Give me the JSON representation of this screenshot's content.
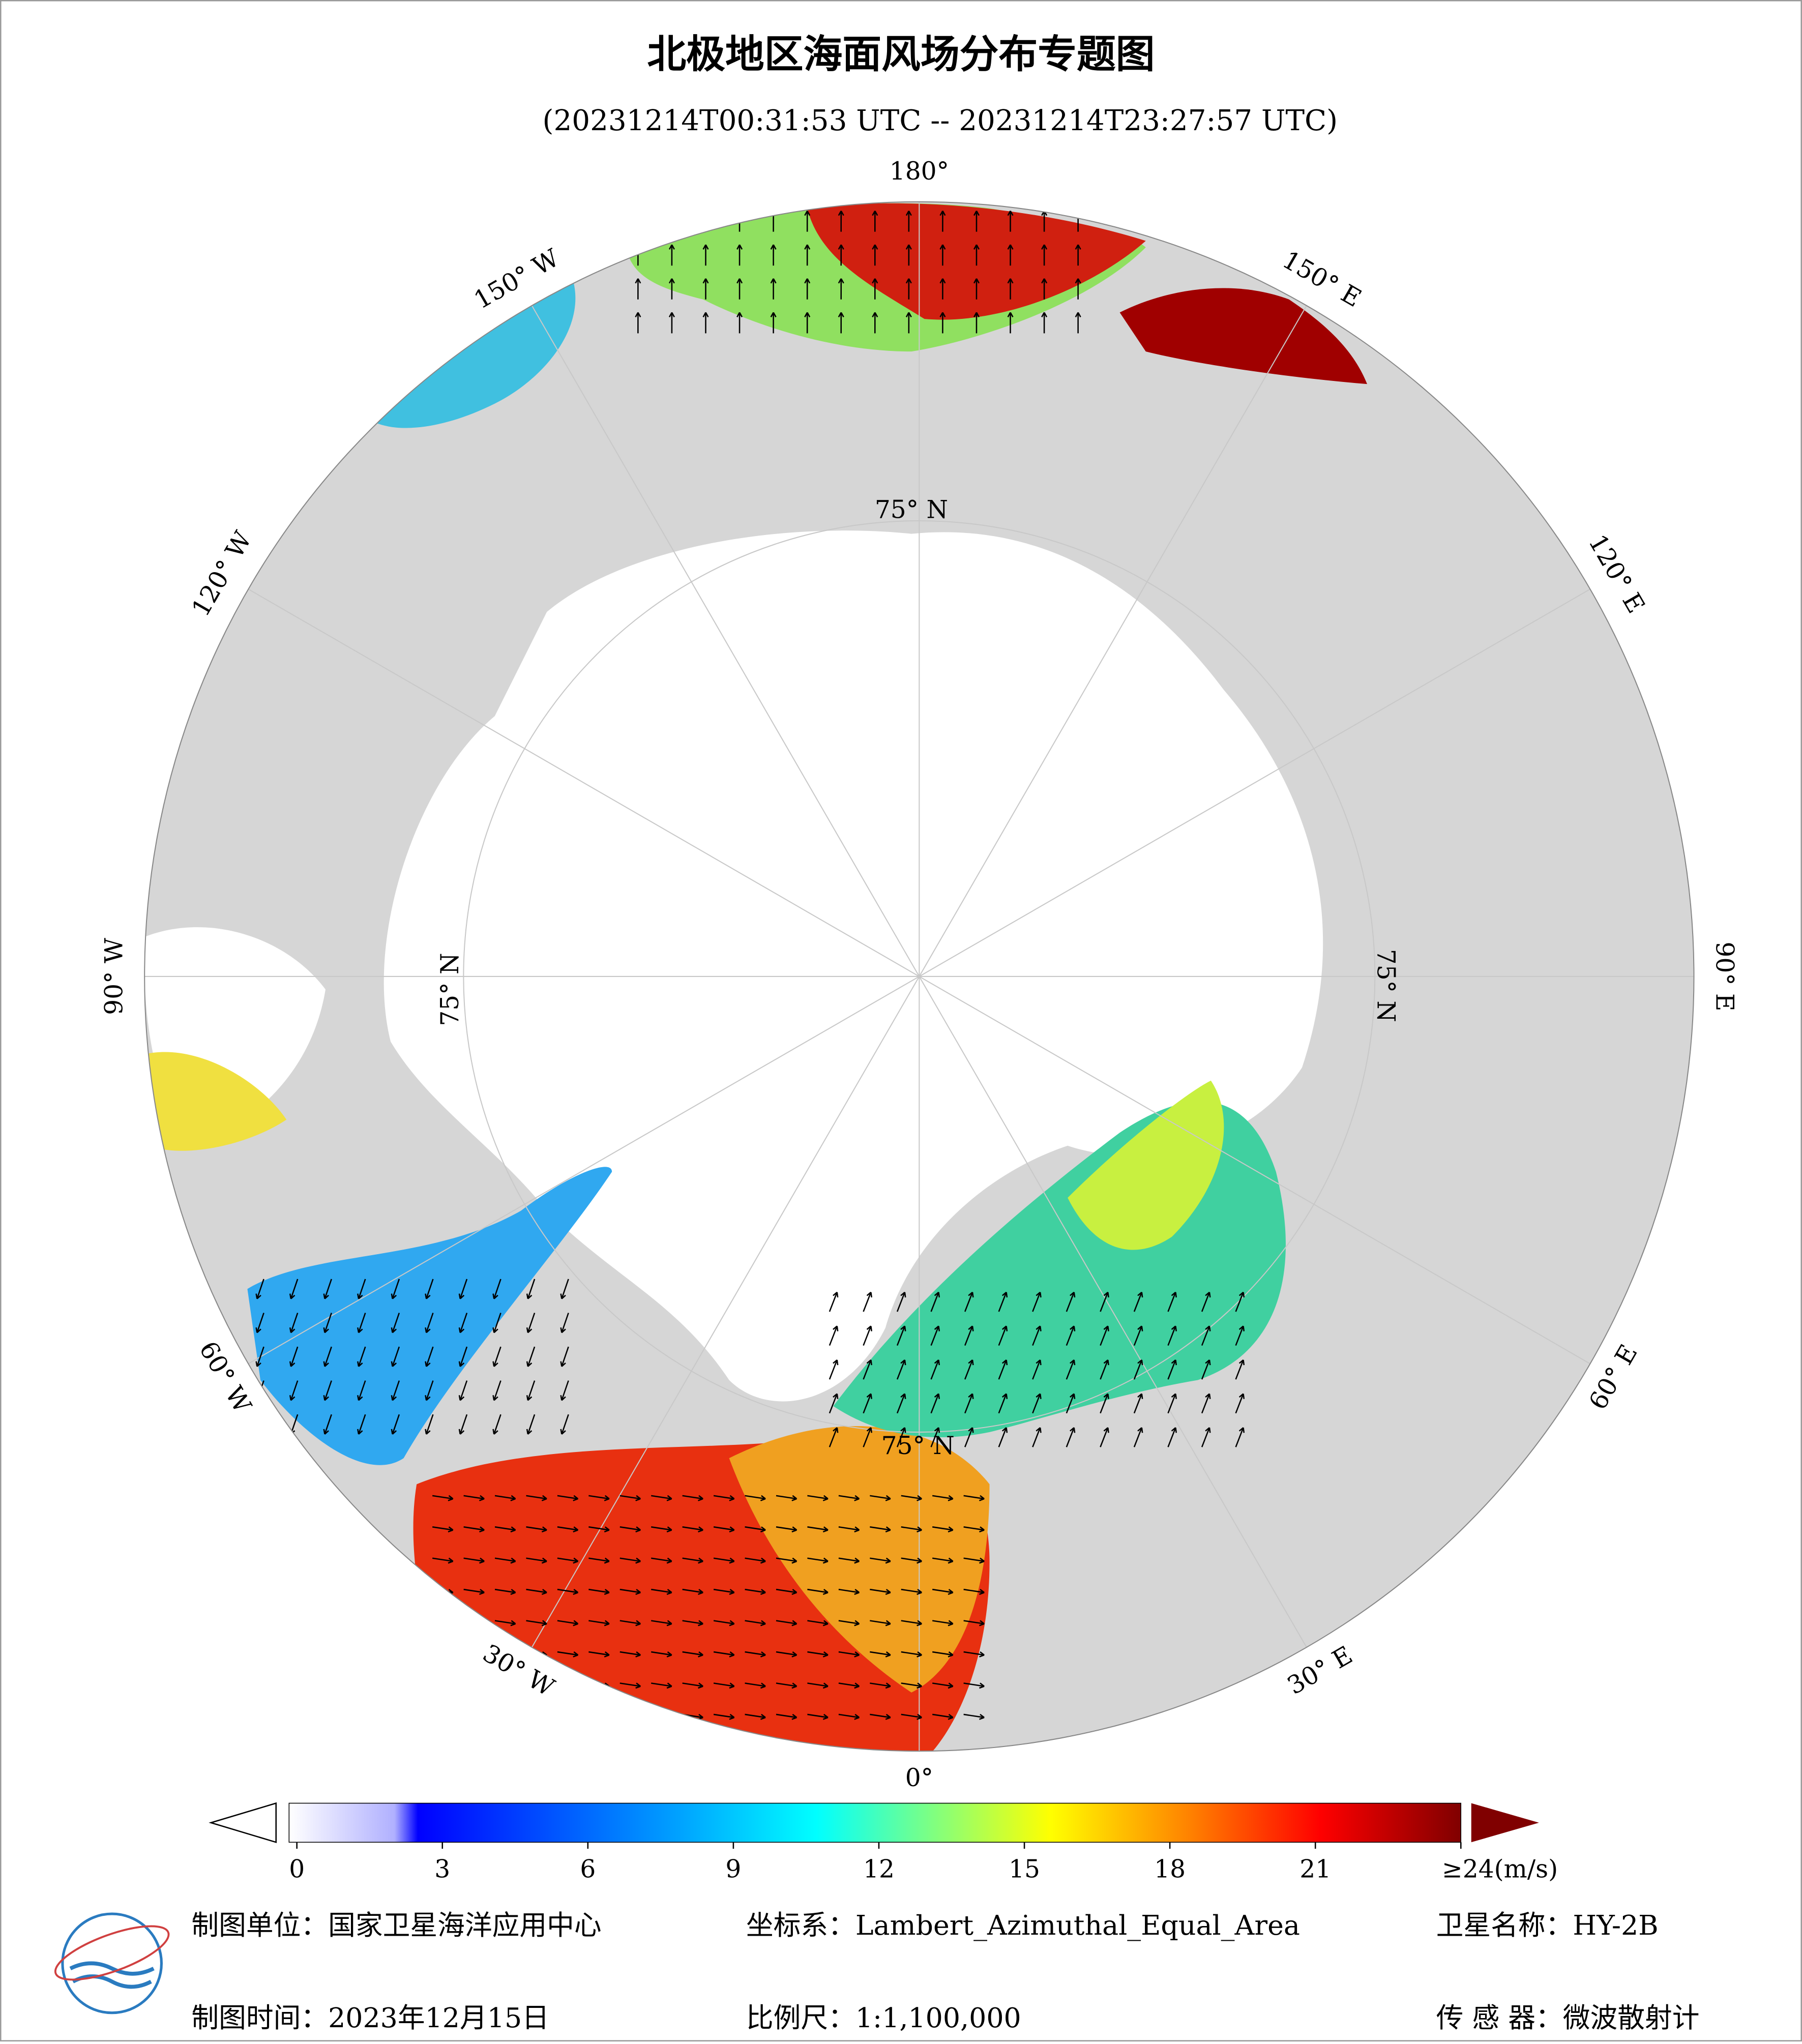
{
  "title": "北极地区海面风场分布专题图",
  "subtitle": "(20231214T00:31:53 UTC -- 20231214T23:27:57 UTC)",
  "map": {
    "longitude_labels": [
      "180°",
      "150° E",
      "120° E",
      "90° E",
      "60° E",
      "30° E",
      "0°",
      "30° W",
      "60° W",
      "90° W",
      "120° W",
      "150° W"
    ],
    "latitude_labels": [
      "75° N",
      "75° N",
      "75° N",
      "75° N"
    ]
  },
  "colorbar": {
    "range": [
      0,
      24
    ],
    "ticks": [
      0,
      3,
      6,
      9,
      12,
      15,
      18,
      21,
      {
        "value": 24,
        "label": "≥24(m/s)"
      }
    ]
  },
  "footer": {
    "unit": "制图单位：国家卫星海洋应用中心",
    "projection": "坐标系：Lambert_Azimuthal_Equal_Area",
    "satellite": "卫星名称：HY-2B",
    "date": "制图时间：2023年12月15日",
    "scale": "比例尺：1:1,100,000",
    "sensor": "传 感 器：微波散射计"
  }
}
